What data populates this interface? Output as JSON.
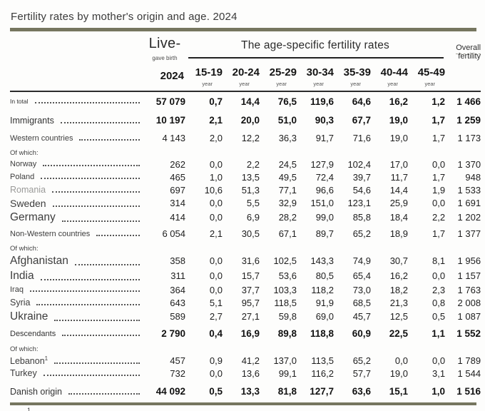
{
  "title": "Fertility rates by mother's origin and age. 2024",
  "header": {
    "live_label": "Live-",
    "live_sub": "gave birth",
    "live_year": "2024",
    "group_title": "The age-specific fertility rates",
    "age_columns": [
      "15-19",
      "20-24",
      "25-29",
      "30-34",
      "35-39",
      "40-44",
      "45-49"
    ],
    "age_sub_label": "year",
    "overall_label": "Overall",
    "overall_sub": "fertility"
  },
  "footnote_mark": "1",
  "chart_data": {
    "type": "table",
    "title": "Fertility rates by mother's origin and age. 2024",
    "columns": [
      "Live births 2024",
      "15-19 year",
      "20-24 year",
      "25-29 year",
      "30-34 year",
      "35-39 year",
      "40-44 year",
      "45-49 year",
      "Overall fertility"
    ],
    "rows": [
      {
        "label": "In total",
        "kind": "total",
        "size": "xs",
        "values": [
          "57 079",
          "0,7",
          "14,4",
          "76,5",
          "119,6",
          "64,6",
          "16,2",
          "1,2",
          "1 466"
        ]
      },
      {
        "label": "Immigrants",
        "kind": "total",
        "size": "m",
        "values": [
          "10 197",
          "2,1",
          "20,0",
          "51,0",
          "90,3",
          "67,7",
          "19,0",
          "1,7",
          "1 259"
        ]
      },
      {
        "label": "Western countries",
        "kind": "group",
        "size": "s",
        "values": [
          "4 143",
          "2,0",
          "12,2",
          "36,3",
          "91,7",
          "71,6",
          "19,0",
          "1,7",
          "1 173"
        ]
      },
      {
        "label": "Of which:",
        "kind": "section"
      },
      {
        "label": "Norway",
        "kind": "country",
        "size": "s",
        "values": [
          "262",
          "0,0",
          "2,2",
          "24,5",
          "127,9",
          "102,4",
          "17,0",
          "0,0",
          "1 370"
        ]
      },
      {
        "label": "Poland",
        "kind": "country",
        "size": "s",
        "values": [
          "465",
          "1,0",
          "13,5",
          "49,5",
          "72,4",
          "39,7",
          "11,7",
          "1,7",
          "948"
        ]
      },
      {
        "label": "Romania",
        "kind": "country",
        "size": "m",
        "muted": true,
        "values": [
          "697",
          "10,6",
          "51,3",
          "77,1",
          "96,6",
          "54,6",
          "14,4",
          "1,9",
          "1 533"
        ]
      },
      {
        "label": "Sweden",
        "kind": "country",
        "size": "l",
        "values": [
          "314",
          "0,0",
          "5,5",
          "32,9",
          "151,0",
          "123,1",
          "25,9",
          "0,0",
          "1 691"
        ]
      },
      {
        "label": "Germany",
        "kind": "country",
        "size": "xl",
        "values": [
          "414",
          "0,0",
          "6,9",
          "28,2",
          "99,0",
          "85,8",
          "18,4",
          "2,2",
          "1 202"
        ]
      },
      {
        "label": "Non-Western countries",
        "kind": "group",
        "size": "s",
        "values": [
          "6 054",
          "2,1",
          "30,5",
          "67,1",
          "89,7",
          "65,2",
          "18,9",
          "1,7",
          "1 377"
        ]
      },
      {
        "label": "Of which:",
        "kind": "section"
      },
      {
        "label": "Afghanistan",
        "kind": "country",
        "size": "xl",
        "values": [
          "358",
          "0,0",
          "31,6",
          "102,5",
          "143,3",
          "74,9",
          "30,7",
          "8,1",
          "1 956"
        ]
      },
      {
        "label": "India",
        "kind": "country",
        "size": "xl",
        "values": [
          "311",
          "0,0",
          "15,7",
          "53,6",
          "80,5",
          "65,4",
          "16,2",
          "0,0",
          "1 157"
        ]
      },
      {
        "label": "Iraq",
        "kind": "country",
        "size": "s",
        "values": [
          "364",
          "0,0",
          "37,7",
          "103,3",
          "118,2",
          "73,0",
          "18,2",
          "2,3",
          "1 763"
        ]
      },
      {
        "label": "Syria",
        "kind": "country",
        "size": "m",
        "values": [
          "643",
          "5,1",
          "95,7",
          "118,5",
          "91,9",
          "68,5",
          "21,3",
          "0,8",
          "2 008"
        ]
      },
      {
        "label": "Ukraine",
        "kind": "country",
        "size": "xl",
        "values": [
          "589",
          "2,7",
          "27,1",
          "59,8",
          "69,0",
          "45,7",
          "12,5",
          "0,5",
          "1 087"
        ]
      },
      {
        "label": "Descendants",
        "kind": "total",
        "size": "s",
        "values": [
          "2 790",
          "0,4",
          "16,9",
          "89,8",
          "118,8",
          "60,9",
          "22,5",
          "1,1",
          "1 552"
        ]
      },
      {
        "label": "Of which:",
        "kind": "section"
      },
      {
        "label": "Lebanon",
        "sup": "1",
        "kind": "country",
        "size": "m",
        "values": [
          "457",
          "0,9",
          "41,2",
          "137,0",
          "113,5",
          "65,2",
          "0,0",
          "0,0",
          "1 789"
        ]
      },
      {
        "label": "Turkey",
        "kind": "country",
        "size": "m",
        "values": [
          "732",
          "0,0",
          "13,6",
          "99,1",
          "116,2",
          "57,7",
          "19,0",
          "3,1",
          "1 544"
        ]
      },
      {
        "label": "Danish origin",
        "kind": "total",
        "size": "m",
        "values": [
          "44 092",
          "0,5",
          "13,3",
          "81,8",
          "127,7",
          "63,6",
          "15,1",
          "1,0",
          "1 516"
        ]
      }
    ]
  }
}
